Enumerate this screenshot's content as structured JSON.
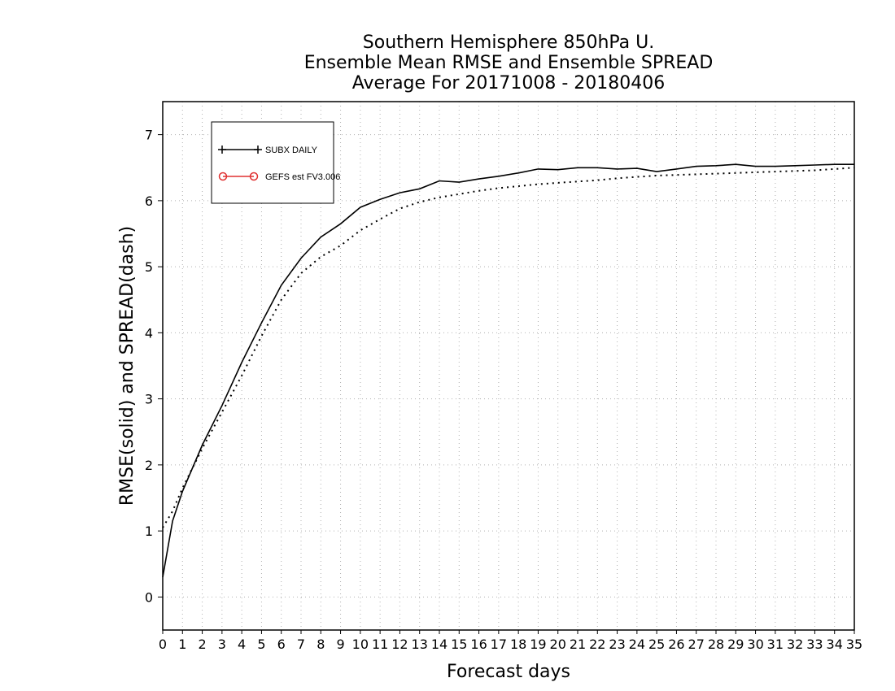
{
  "chart_data": {
    "type": "line",
    "title_lines": [
      "Southern Hemisphere 850hPa U.",
      "Ensemble Mean RMSE and Ensemble SPREAD",
      "Average For 20171008 - 20180406"
    ],
    "xlabel": "Forecast days",
    "ylabel": "RMSE(solid) and SPREAD(dash)",
    "xlim": [
      0,
      35
    ],
    "ylim": [
      -0.5,
      7.5
    ],
    "xticks": [
      "0",
      "1",
      "2",
      "3",
      "4",
      "5",
      "6",
      "7",
      "8",
      "9",
      "10",
      "11",
      "12",
      "13",
      "14",
      "15",
      "16",
      "17",
      "18",
      "19",
      "20",
      "21",
      "22",
      "23",
      "24",
      "25",
      "26",
      "27",
      "28",
      "29",
      "30",
      "31",
      "32",
      "33",
      "34",
      "35"
    ],
    "yticks": [
      "0",
      "1",
      "2",
      "3",
      "4",
      "5",
      "6",
      "7"
    ],
    "grid": true,
    "legend_position": "top-left",
    "legend": [
      {
        "label": "SUBX DAILY",
        "color": "#000000",
        "marker": "plus"
      },
      {
        "label": "GEFS est FV3.006",
        "color": "#e03030",
        "marker": "circle"
      }
    ],
    "series": [
      {
        "metric": "RMSE",
        "style": "solid",
        "color": "#000000",
        "x": [
          0,
          0.5,
          1,
          2,
          3,
          4,
          5,
          6,
          7,
          8,
          9,
          10,
          11,
          12,
          13,
          14,
          15,
          16,
          17,
          18,
          19,
          20,
          21,
          22,
          23,
          24,
          25,
          26,
          27,
          28,
          29,
          30,
          31,
          32,
          33,
          34,
          35
        ],
        "y": [
          0.3,
          1.15,
          1.6,
          2.3,
          2.9,
          3.55,
          4.15,
          4.72,
          5.13,
          5.45,
          5.65,
          5.9,
          6.02,
          6.12,
          6.18,
          6.3,
          6.28,
          6.33,
          6.37,
          6.42,
          6.48,
          6.47,
          6.5,
          6.5,
          6.48,
          6.49,
          6.44,
          6.48,
          6.52,
          6.53,
          6.55,
          6.52,
          6.52,
          6.53,
          6.54,
          6.55,
          6.55
        ]
      },
      {
        "metric": "SPREAD",
        "style": "dash",
        "color": "#000000",
        "x": [
          0,
          0.5,
          1,
          2,
          3,
          4,
          5,
          6,
          7,
          8,
          9,
          10,
          11,
          12,
          13,
          14,
          15,
          16,
          17,
          18,
          19,
          20,
          21,
          22,
          23,
          24,
          25,
          26,
          27,
          28,
          29,
          30,
          31,
          32,
          33,
          34,
          35
        ],
        "y": [
          1.05,
          1.3,
          1.65,
          2.25,
          2.8,
          3.35,
          3.95,
          4.5,
          4.9,
          5.15,
          5.32,
          5.55,
          5.72,
          5.88,
          5.98,
          6.05,
          6.1,
          6.15,
          6.19,
          6.22,
          6.25,
          6.27,
          6.29,
          6.31,
          6.34,
          6.36,
          6.38,
          6.39,
          6.4,
          6.41,
          6.42,
          6.43,
          6.44,
          6.45,
          6.46,
          6.48,
          6.5
        ]
      }
    ]
  }
}
